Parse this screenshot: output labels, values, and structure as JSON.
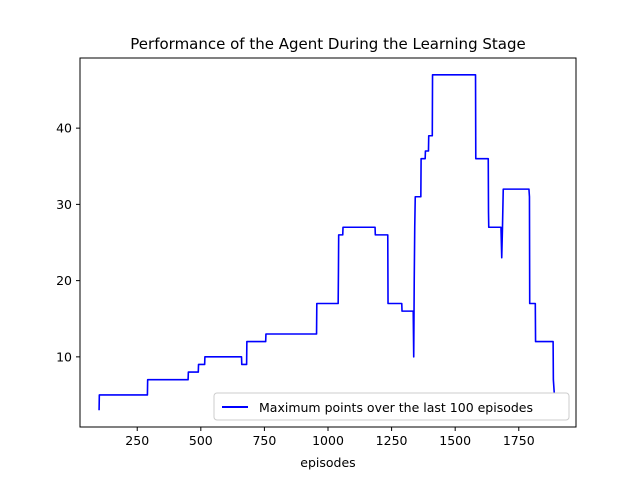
{
  "chart_data": {
    "type": "line",
    "title": "Performance of the Agent During the Learning Stage",
    "xlabel": "episodes",
    "ylabel": "",
    "xlim": [
      25,
      1975
    ],
    "ylim": [
      0.8,
      49.2
    ],
    "xticks": [
      250,
      500,
      750,
      1000,
      1250,
      1500,
      1750
    ],
    "yticks": [
      10,
      20,
      30,
      40
    ],
    "grid": false,
    "legend_position": "lower-right",
    "colors": {
      "series": "#0000ff",
      "axes": "#000000",
      "background": "#ffffff"
    },
    "series": [
      {
        "name": "Maximum points over the last 100 episodes",
        "x": [
          100,
          101,
          290,
          291,
          450,
          451,
          490,
          491,
          515,
          516,
          660,
          661,
          680,
          681,
          755,
          756,
          955,
          956,
          1040,
          1041,
          1042,
          1043,
          1058,
          1059,
          1185,
          1186,
          1235,
          1236,
          1290,
          1291,
          1335,
          1337,
          1339,
          1341,
          1343,
          1345,
          1347,
          1349,
          1365,
          1366,
          1382,
          1383,
          1395,
          1396,
          1410,
          1411,
          1420,
          1421,
          1580,
          1581,
          1630,
          1631,
          1632,
          1633,
          1680,
          1683,
          1686,
          1689,
          1692,
          1693,
          1790,
          1792,
          1793,
          1794,
          1815,
          1816,
          1885,
          1886,
          1890,
          1891,
          1895
        ],
        "y": [
          3,
          5,
          5,
          7,
          7,
          8,
          8,
          9,
          9,
          10,
          10,
          9,
          9,
          12,
          12,
          13,
          13,
          17,
          17,
          21,
          26,
          26,
          26,
          27,
          27,
          26,
          26,
          17,
          17,
          16,
          16,
          10,
          20,
          27,
          31,
          31,
          31,
          31,
          31,
          36,
          36,
          37,
          37,
          39,
          39,
          47,
          47,
          47,
          47,
          36,
          36,
          29,
          27,
          27,
          27,
          23,
          27,
          32,
          32,
          32,
          32,
          31,
          17,
          17,
          17,
          12,
          12,
          7,
          5,
          5,
          5
        ]
      }
    ]
  }
}
